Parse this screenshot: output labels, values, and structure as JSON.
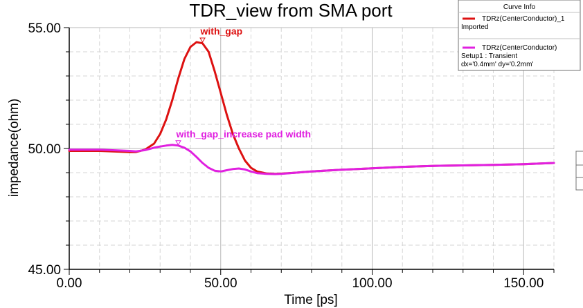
{
  "chart_data": {
    "type": "line",
    "title": "TDR_view from SMA port",
    "xlabel": "Time [ps]",
    "ylabel": "impedance(ohm)",
    "xlim": [
      0,
      160
    ],
    "ylim": [
      45,
      55
    ],
    "xticks": [
      {
        "value": 0,
        "label": "0.00"
      },
      {
        "value": 50,
        "label": "50.00"
      },
      {
        "value": 100,
        "label": "100.00"
      },
      {
        "value": 150,
        "label": "150.00"
      }
    ],
    "yticks": [
      {
        "value": 45,
        "label": "45.00"
      },
      {
        "value": 50,
        "label": "50.00"
      },
      {
        "value": 55,
        "label": "55.00"
      }
    ],
    "grid": true,
    "legend_title": "Curve Info",
    "legend_position": "top-right",
    "series": [
      {
        "name": "TDRz(CenterConductor)_1",
        "legend_lines": [
          "TDRz(CenterConductor)_1",
          "Imported"
        ],
        "color": "#dd1111",
        "x": [
          0,
          10,
          20,
          22,
          25,
          28,
          30,
          32,
          34,
          36,
          38,
          40,
          42,
          44,
          46,
          48,
          50,
          52,
          54,
          56,
          58,
          60,
          62,
          65,
          68,
          70,
          75,
          80,
          90,
          100,
          110,
          120,
          130,
          140,
          150,
          160
        ],
        "y": [
          49.9,
          49.9,
          49.85,
          49.85,
          49.95,
          50.2,
          50.6,
          51.2,
          52.0,
          52.9,
          53.7,
          54.2,
          54.4,
          54.35,
          54.0,
          53.2,
          52.3,
          51.4,
          50.6,
          50.0,
          49.5,
          49.2,
          49.05,
          48.97,
          48.95,
          48.96,
          49.0,
          49.05,
          49.12,
          49.18,
          49.24,
          49.28,
          49.3,
          49.32,
          49.35,
          49.4
        ]
      },
      {
        "name": "TDRz(CenterConductor)",
        "legend_lines": [
          "TDRz(CenterConductor)",
          "Setup1 : Transient",
          "dx='0.4mm' dy='0.2mm'"
        ],
        "color": "#e020e0",
        "x": [
          0,
          10,
          20,
          22,
          25,
          28,
          30,
          32,
          34,
          36,
          38,
          40,
          42,
          44,
          46,
          48,
          50,
          52,
          54,
          56,
          58,
          60,
          62,
          65,
          68,
          70,
          75,
          80,
          90,
          100,
          110,
          120,
          130,
          140,
          150,
          160
        ],
        "y": [
          49.95,
          49.95,
          49.9,
          49.88,
          49.93,
          50.03,
          50.08,
          50.12,
          50.15,
          50.12,
          50.03,
          49.88,
          49.65,
          49.4,
          49.2,
          49.08,
          49.05,
          49.1,
          49.15,
          49.17,
          49.13,
          49.05,
          48.98,
          48.95,
          48.94,
          48.95,
          49.0,
          49.05,
          49.12,
          49.18,
          49.24,
          49.28,
          49.3,
          49.32,
          49.35,
          49.4
        ]
      }
    ],
    "annotations": [
      {
        "text": "with_gap",
        "x": 44,
        "y": 54.4,
        "color": "#dd1111"
      },
      {
        "text": "with_gap_increase pad width",
        "x": 36,
        "y": 50.15,
        "color": "#e020e0"
      }
    ]
  }
}
